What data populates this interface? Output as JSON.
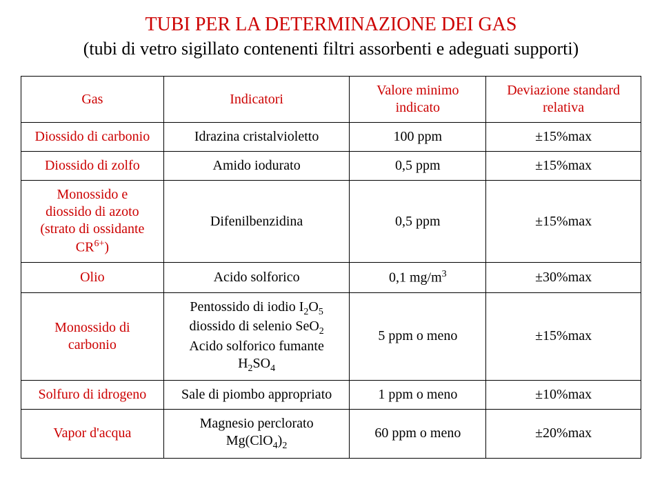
{
  "title": {
    "main": "TUBI PER LA DETERMINAZIONE DEI GAS",
    "sub": "(tubi di vetro sigillato contenenti filtri assorbenti e adeguati supporti)"
  },
  "header": {
    "gas": "Gas",
    "indicatori": "Indicatori",
    "valore": "Valore minimo indicato",
    "deviazione": "Deviazione standard relativa"
  },
  "rows": {
    "r0": {
      "gas": "Diossido di carbonio",
      "ind": "Idrazina cristalvioletto",
      "val": "100 ppm",
      "dev": "±15%max"
    },
    "r1": {
      "gas": "Diossido di zolfo",
      "ind": "Amido iodurato",
      "val": "0,5 ppm",
      "dev": "±15%max"
    },
    "r2": {
      "ind": "Difenilbenzidina",
      "val": "0,5 ppm",
      "dev": "±15%max",
      "gas_l1": "Monossido e",
      "gas_l2": "diossido di azoto",
      "gas_l3": "(strato di ossidante",
      "gas_l4a": "CR",
      "gas_l4b": "6+",
      "gas_l4c": ")"
    },
    "r3": {
      "gas": "Olio",
      "ind": "Acido solforico",
      "val_a": "0,1 mg/m",
      "val_b": "3",
      "dev": "±30%max"
    },
    "r4": {
      "gas_l1": "Monossido di",
      "gas_l2": "carbonio",
      "ind_l1a": "Pentossido di iodio I",
      "ind_l1b": "2",
      "ind_l1c": "O",
      "ind_l1d": "5",
      "ind_l2a": "diossido di selenio SeO",
      "ind_l2b": "2",
      "ind_l3": "Acido solforico fumante",
      "ind_l4a": "H",
      "ind_l4b": "2",
      "ind_l4c": "SO",
      "ind_l4d": "4",
      "val": "5 ppm o meno",
      "dev": "±15%max"
    },
    "r5": {
      "gas": "Solfuro di idrogeno",
      "ind": "Sale di piombo appropriato",
      "val": "1 ppm o meno",
      "dev": "±10%max"
    },
    "r6": {
      "gas": "Vapor d'acqua",
      "ind_l1": "Magnesio perclorato",
      "ind_l2a": "Mg(ClO",
      "ind_l2b": "4",
      "ind_l2c": ")",
      "ind_l2d": "2",
      "val": "60 ppm o meno",
      "dev": "±20%max"
    }
  }
}
